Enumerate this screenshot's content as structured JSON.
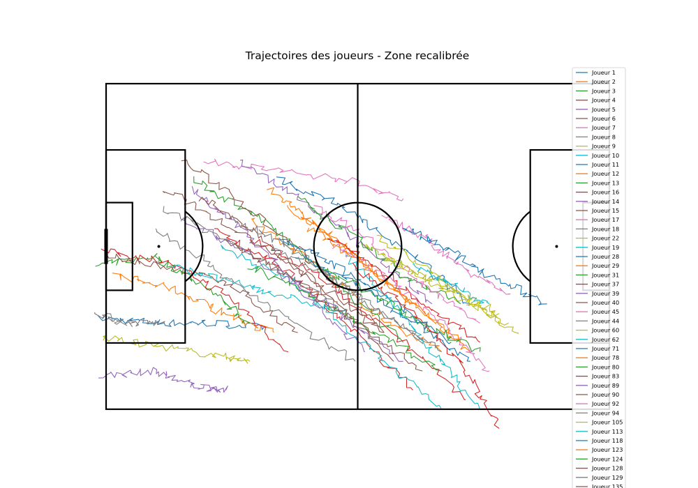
{
  "chart_data": {
    "type": "line",
    "title": "Trajectoires des joueurs - Zone recalibrée",
    "xlabel": "",
    "ylabel": "",
    "xlim": [
      -3,
      105
    ],
    "ylim": [
      -7,
      68
    ],
    "grid": false,
    "legend_placement": "right",
    "pitch": {
      "length": 105,
      "width": 68,
      "line_color": "#000000"
    },
    "series": [
      {
        "name": "Joueur 1",
        "color": "#1f77b4",
        "waypoints": [
          [
            -1,
            19
          ],
          [
            12,
            18
          ],
          [
            22,
            18
          ],
          [
            34,
            17
          ]
        ]
      },
      {
        "name": "Joueur 2",
        "color": "#ff7f0e",
        "waypoints": [
          [
            2,
            28
          ],
          [
            14,
            25
          ],
          [
            25,
            20
          ],
          [
            35,
            16
          ]
        ]
      },
      {
        "name": "Joueur 3",
        "color": "#2ca02c",
        "waypoints": [
          [
            -2,
            30
          ],
          [
            10,
            32
          ],
          [
            20,
            26
          ],
          [
            30,
            18
          ]
        ]
      },
      {
        "name": "Joueur 4",
        "color": "#d62728",
        "waypoints": [
          [
            -1,
            33
          ],
          [
            12,
            31
          ],
          [
            25,
            24
          ],
          [
            38,
            12
          ]
        ]
      },
      {
        "name": "Joueur 5",
        "color": "#9467bd",
        "waypoints": [
          [
            -1,
            7
          ],
          [
            10,
            8
          ],
          [
            18,
            5
          ],
          [
            25,
            4
          ]
        ]
      },
      {
        "name": "Joueur 6",
        "color": "#8c564b",
        "waypoints": [
          [
            0,
            32
          ],
          [
            12,
            30
          ],
          [
            26,
            26
          ],
          [
            40,
            16
          ]
        ]
      },
      {
        "name": "Joueur 7",
        "color": "#e377c2",
        "waypoints": [
          [
            20,
            52
          ],
          [
            35,
            50
          ],
          [
            50,
            48
          ],
          [
            62,
            44
          ]
        ]
      },
      {
        "name": "Joueur 8",
        "color": "#7f7f7f",
        "waypoints": [
          [
            -2,
            20
          ],
          [
            4,
            18
          ],
          [
            12,
            18
          ]
        ]
      },
      {
        "name": "Joueur 9",
        "color": "#bcbd22",
        "waypoints": [
          [
            -1,
            15
          ],
          [
            12,
            13
          ],
          [
            24,
            11
          ],
          [
            30,
            10
          ]
        ]
      },
      {
        "name": "Joueur 10",
        "color": "#17becf",
        "waypoints": [
          [
            14,
            30
          ],
          [
            24,
            27
          ],
          [
            36,
            24
          ],
          [
            50,
            20
          ]
        ]
      },
      {
        "name": "Joueur 11",
        "color": "#1f77b4",
        "waypoints": [
          [
            36,
            48
          ],
          [
            50,
            42
          ],
          [
            64,
            32
          ],
          [
            76,
            22
          ]
        ]
      },
      {
        "name": "Joueur 12",
        "color": "#ff7f0e",
        "waypoints": [
          [
            30,
            40
          ],
          [
            44,
            30
          ],
          [
            56,
            20
          ],
          [
            70,
            12
          ]
        ]
      },
      {
        "name": "Joueur 13",
        "color": "#2ca02c",
        "waypoints": [
          [
            18,
            48
          ],
          [
            32,
            40
          ],
          [
            46,
            28
          ],
          [
            62,
            14
          ]
        ]
      },
      {
        "name": "Joueur 16",
        "color": "#d62728",
        "waypoints": [
          [
            22,
            38
          ],
          [
            36,
            30
          ],
          [
            50,
            18
          ],
          [
            64,
            4
          ]
        ]
      },
      {
        "name": "Joueur 14",
        "color": "#9467bd",
        "waypoints": [
          [
            28,
            52
          ],
          [
            40,
            44
          ],
          [
            54,
            34
          ],
          [
            68,
            22
          ]
        ]
      },
      {
        "name": "Joueur 15",
        "color": "#8c564b",
        "waypoints": [
          [
            16,
            52
          ],
          [
            30,
            42
          ],
          [
            44,
            30
          ],
          [
            58,
            16
          ]
        ]
      },
      {
        "name": "Joueur 17",
        "color": "#e377c2",
        "waypoints": [
          [
            58,
            40
          ],
          [
            66,
            36
          ],
          [
            74,
            30
          ],
          [
            84,
            24
          ]
        ]
      },
      {
        "name": "Joueur 18",
        "color": "#7f7f7f",
        "waypoints": [
          [
            12,
            42
          ],
          [
            24,
            36
          ],
          [
            38,
            28
          ],
          [
            50,
            20
          ]
        ]
      },
      {
        "name": "Joueur 22",
        "color": "#bcbd22",
        "waypoints": [
          [
            56,
            36
          ],
          [
            66,
            30
          ],
          [
            76,
            22
          ],
          [
            86,
            16
          ]
        ]
      },
      {
        "name": "Joueur 19",
        "color": "#17becf",
        "waypoints": [
          [
            24,
            34
          ],
          [
            40,
            26
          ],
          [
            56,
            12
          ],
          [
            70,
            0
          ]
        ]
      },
      {
        "name": "Joueur 28",
        "color": "#1f77b4",
        "waypoints": [
          [
            62,
            38
          ],
          [
            70,
            34
          ],
          [
            80,
            28
          ],
          [
            92,
            22
          ]
        ]
      },
      {
        "name": "Joueur 29",
        "color": "#ff7f0e",
        "waypoints": [
          [
            34,
            46
          ],
          [
            42,
            40
          ],
          [
            52,
            32
          ],
          [
            64,
            22
          ]
        ]
      },
      {
        "name": "Joueur 31",
        "color": "#2ca02c",
        "waypoints": [
          [
            40,
            44
          ],
          [
            52,
            36
          ],
          [
            62,
            28
          ],
          [
            74,
            22
          ]
        ]
      },
      {
        "name": "Joueur 37",
        "color": "#d62728",
        "waypoints": [
          [
            30,
            36
          ],
          [
            44,
            28
          ],
          [
            60,
            16
          ],
          [
            75,
            2
          ]
        ]
      },
      {
        "name": "Joueur 39",
        "color": "#9467bd",
        "waypoints": [
          [
            18,
            46
          ],
          [
            28,
            38
          ],
          [
            40,
            26
          ],
          [
            54,
            12
          ]
        ]
      },
      {
        "name": "Joueur 40",
        "color": "#8c564b",
        "waypoints": [
          [
            20,
            44
          ],
          [
            32,
            36
          ],
          [
            46,
            24
          ],
          [
            60,
            10
          ]
        ]
      },
      {
        "name": "Joueur 45",
        "color": "#e377c2",
        "waypoints": [
          [
            44,
            42
          ],
          [
            54,
            36
          ],
          [
            66,
            26
          ],
          [
            78,
            18
          ]
        ]
      },
      {
        "name": "Joueur 44",
        "color": "#7f7f7f",
        "waypoints": [
          [
            26,
            40
          ],
          [
            38,
            34
          ],
          [
            52,
            24
          ],
          [
            66,
            14
          ]
        ]
      },
      {
        "name": "Joueur 60",
        "color": "#bcbd22",
        "waypoints": [
          [
            58,
            32
          ],
          [
            66,
            28
          ],
          [
            74,
            24
          ],
          [
            82,
            20
          ]
        ]
      },
      {
        "name": "Joueur 62",
        "color": "#17becf",
        "waypoints": [
          [
            64,
            30
          ],
          [
            72,
            26
          ],
          [
            80,
            22
          ]
        ]
      },
      {
        "name": "Joueur 71",
        "color": "#1f77b4",
        "waypoints": [
          [
            36,
            36
          ],
          [
            48,
            30
          ],
          [
            60,
            22
          ],
          [
            72,
            14
          ]
        ]
      },
      {
        "name": "Joueur 78",
        "color": "#ff7f0e",
        "waypoints": [
          [
            38,
            42
          ],
          [
            50,
            34
          ],
          [
            62,
            24
          ],
          [
            76,
            12
          ]
        ]
      },
      {
        "name": "Joueur 80",
        "color": "#2ca02c",
        "waypoints": [
          [
            30,
            30
          ],
          [
            42,
            24
          ],
          [
            56,
            16
          ],
          [
            70,
            8
          ]
        ]
      },
      {
        "name": "Joueur 83",
        "color": "#d62728",
        "waypoints": [
          [
            46,
            36
          ],
          [
            56,
            30
          ],
          [
            66,
            22
          ],
          [
            78,
            14
          ]
        ]
      },
      {
        "name": "Joueur 89",
        "color": "#9467bd",
        "waypoints": [
          [
            16,
            40
          ],
          [
            30,
            32
          ],
          [
            46,
            22
          ],
          [
            62,
            10
          ]
        ]
      },
      {
        "name": "Joueur 90",
        "color": "#8c564b",
        "waypoints": [
          [
            12,
            46
          ],
          [
            26,
            38
          ],
          [
            42,
            28
          ],
          [
            58,
            16
          ]
        ]
      },
      {
        "name": "Joueur 92",
        "color": "#e377c2",
        "waypoints": [
          [
            48,
            34
          ],
          [
            58,
            28
          ],
          [
            70,
            18
          ],
          [
            80,
            8
          ]
        ]
      },
      {
        "name": "Joueur 94",
        "color": "#7f7f7f",
        "waypoints": [
          [
            10,
            38
          ],
          [
            22,
            30
          ],
          [
            36,
            20
          ],
          [
            52,
            10
          ]
        ]
      },
      {
        "name": "Joueur 105",
        "color": "#bcbd22",
        "waypoints": [
          [
            54,
            34
          ],
          [
            62,
            30
          ],
          [
            72,
            24
          ],
          [
            84,
            18
          ]
        ]
      },
      {
        "name": "Joueur 113",
        "color": "#17becf",
        "waypoints": [
          [
            50,
            32
          ],
          [
            60,
            22
          ],
          [
            68,
            12
          ],
          [
            78,
            0
          ]
        ]
      },
      {
        "name": "Joueur 118",
        "color": "#1f77b4",
        "waypoints": [
          [
            40,
            32
          ],
          [
            52,
            26
          ],
          [
            64,
            18
          ],
          [
            76,
            10
          ]
        ]
      },
      {
        "name": "Joueur 123",
        "color": "#ff7f0e",
        "waypoints": [
          [
            42,
            38
          ],
          [
            54,
            30
          ],
          [
            64,
            22
          ],
          [
            74,
            14
          ]
        ]
      },
      {
        "name": "Joueur 124",
        "color": "#2ca02c",
        "waypoints": [
          [
            44,
            30
          ],
          [
            56,
            24
          ],
          [
            66,
            18
          ],
          [
            78,
            12
          ]
        ]
      },
      {
        "name": "Joueur 128",
        "color": "#d62728",
        "waypoints": [
          [
            52,
            30
          ],
          [
            64,
            20
          ],
          [
            74,
            10
          ],
          [
            82,
            -4
          ]
        ]
      },
      {
        "name": "Joueur 129",
        "color": "#7f7f7f",
        "waypoints": [
          [
            34,
            34
          ],
          [
            46,
            28
          ],
          [
            58,
            20
          ],
          [
            70,
            12
          ]
        ]
      },
      {
        "name": "Joueur 135",
        "color": "#8c564b",
        "waypoints": [
          [
            24,
            36
          ],
          [
            38,
            28
          ],
          [
            52,
            18
          ],
          [
            66,
            8
          ]
        ]
      }
    ]
  }
}
